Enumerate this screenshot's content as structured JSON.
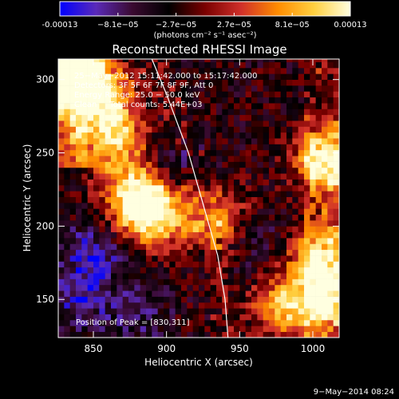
{
  "colorbar": {
    "tick_labels": [
      "-0.00013",
      "−8.1e−05",
      "−2.7e−05",
      "2.7e−05",
      "8.1e−05",
      "0.00013"
    ],
    "units_label": "(photons cm⁻² s⁻¹ asec⁻²)",
    "range": [
      -0.00013,
      0.00013
    ],
    "colors": [
      "#0000ff",
      "#5a2ab8",
      "#3a0a30",
      "#000000",
      "#7a0000",
      "#d0302a",
      "#ff8c00",
      "#ffd040",
      "#ffffe0"
    ]
  },
  "chart_data": {
    "type": "heatmap",
    "title": "Reconstructed RHESSI Image",
    "xlabel": "Heliocentric X (arcsec)",
    "ylabel": "Heliocentric Y (arcsec)",
    "xlim": [
      826,
      1018
    ],
    "ylim": [
      124,
      314
    ],
    "x_ticks": [
      850,
      900,
      950,
      1000
    ],
    "y_ticks": [
      150,
      200,
      250,
      300
    ],
    "grid_resolution_arcsec": 4,
    "limb_curve": [
      [
        890,
        314
      ],
      [
        900,
        290
      ],
      [
        915,
        250
      ],
      [
        925,
        215
      ],
      [
        935,
        180
      ],
      [
        940,
        150
      ],
      [
        942,
        124
      ]
    ],
    "hot_spots": [
      {
        "x": 832,
        "y": 305,
        "strength": 1.0
      },
      {
        "x": 830,
        "y": 311,
        "strength": 1.0
      },
      {
        "x": 855,
        "y": 290,
        "strength": 0.8
      },
      {
        "x": 862,
        "y": 260,
        "strength": 0.85
      },
      {
        "x": 880,
        "y": 220,
        "strength": 0.9
      },
      {
        "x": 893,
        "y": 208,
        "strength": 0.8
      },
      {
        "x": 1010,
        "y": 245,
        "strength": 0.95
      },
      {
        "x": 1005,
        "y": 180,
        "strength": 0.7
      },
      {
        "x": 1010,
        "y": 150,
        "strength": 0.75
      },
      {
        "x": 980,
        "y": 145,
        "strength": 0.7
      },
      {
        "x": 935,
        "y": 205,
        "strength": 0.6
      }
    ],
    "cold_spots": [
      {
        "x": 850,
        "y": 180,
        "strength": 1.0
      },
      {
        "x": 840,
        "y": 150,
        "strength": 0.9
      },
      {
        "x": 910,
        "y": 240,
        "strength": 0.6
      },
      {
        "x": 960,
        "y": 190,
        "strength": 0.5
      },
      {
        "x": 880,
        "y": 140,
        "strength": 0.6
      }
    ]
  },
  "annotations": {
    "time_range": "25−May−2012 15:11:42.000 to 15:17:42.000",
    "detectors": "Detectors: 3F 5F 6F 7F 8F 9F, Att 0",
    "energy_range": "Energy Range: 25.0 − 50.0 keV",
    "clean_counts": "Clean     Total counts: 5.44E+03",
    "peak_position": "Position of Peak = [830,311]"
  },
  "footer": {
    "date": "9−May−2014 08:24"
  }
}
